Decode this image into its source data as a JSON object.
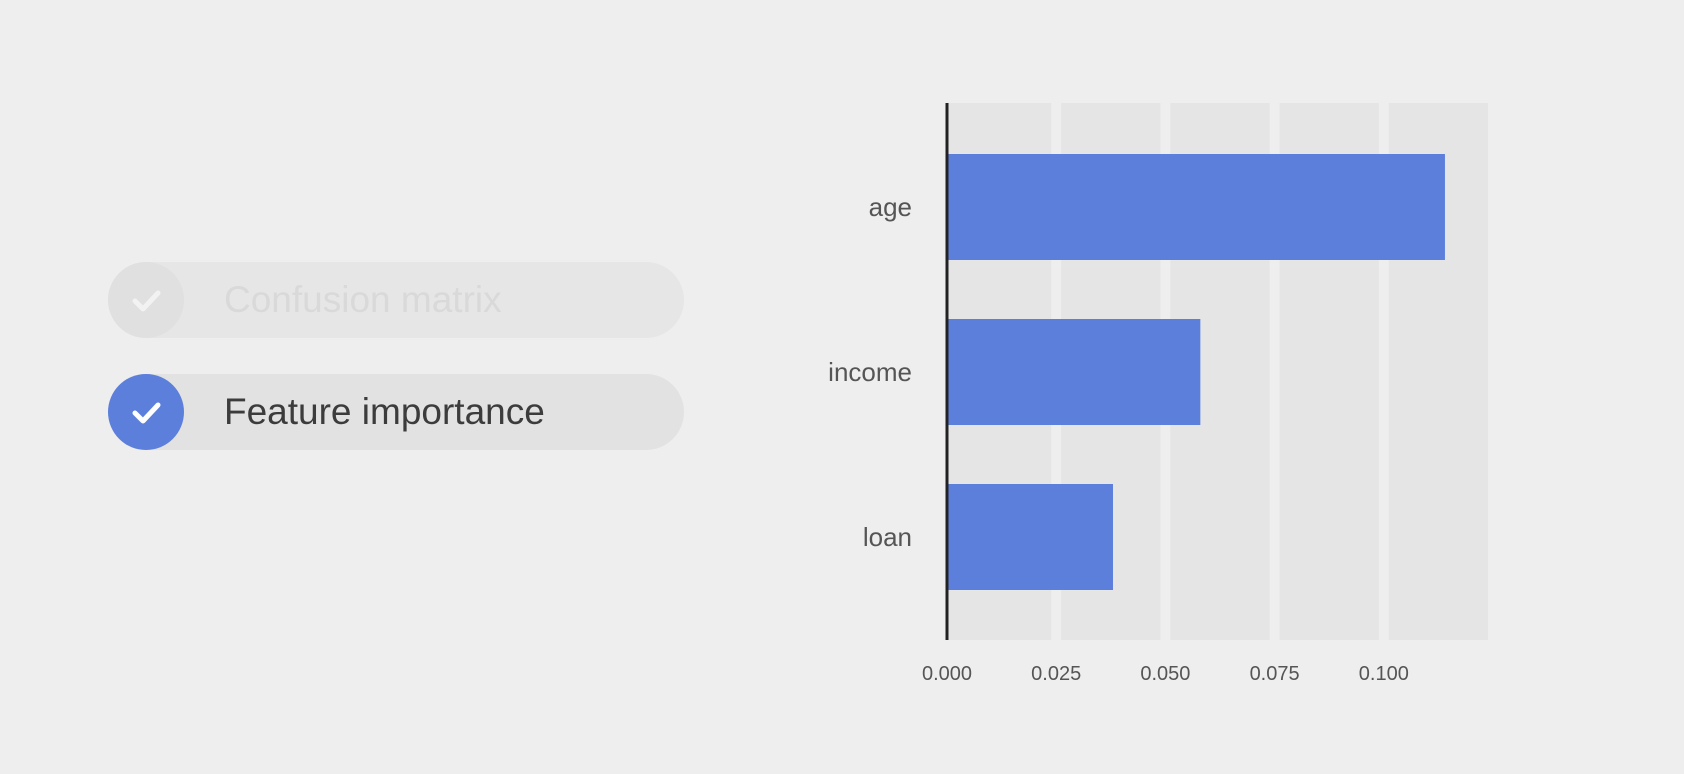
{
  "checklist": {
    "items": [
      {
        "label": "Confusion matrix",
        "state": "inactive"
      },
      {
        "label": "Feature importance",
        "state": "active"
      }
    ]
  },
  "colors": {
    "background": "#eeeeee",
    "bar": "#5c7fdc",
    "plot_band": "#e5e5e5",
    "axis": "#222222",
    "check_active": "#5c7fdc"
  },
  "icons": {
    "check": "check-icon"
  },
  "chart_data": {
    "type": "bar",
    "orientation": "horizontal",
    "categories": [
      "age",
      "income",
      "loan"
    ],
    "values": [
      0.114,
      0.058,
      0.038
    ],
    "xlim": [
      0.0,
      0.125
    ],
    "xticks": [
      0.0,
      0.025,
      0.05,
      0.075,
      0.1
    ],
    "xtick_labels": [
      "0.000",
      "0.025",
      "0.050",
      "0.075",
      "0.100"
    ],
    "title": "",
    "xlabel": "",
    "ylabel": "",
    "grid": true,
    "legend": "none"
  }
}
